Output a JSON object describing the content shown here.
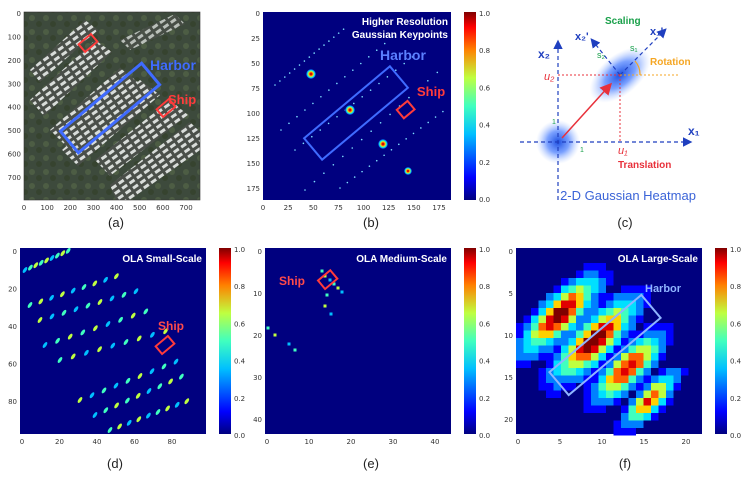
{
  "colors": {
    "bg_dark": "#00007f",
    "harbor": "#3f6bff",
    "ship": "#ff3b3b",
    "scaling": "#19a04a",
    "rotation": "#f5a623",
    "translation": "#e8313b",
    "axis": "#1f3fbf",
    "heatmap_title": "#3b64d8",
    "ola_harbor": "#8fb4ff"
  },
  "captions": {
    "a": "(a)",
    "b": "(b)",
    "c": "(c)",
    "d": "(d)",
    "e": "(e)",
    "f": "(f)"
  },
  "panel_a": {
    "harbor_label": "Harbor",
    "ship_label": "Ship",
    "x_ticks": [
      "0",
      "100",
      "200",
      "300",
      "400",
      "500",
      "600",
      "700"
    ],
    "y_ticks": [
      "0",
      "100",
      "200",
      "300",
      "400",
      "500",
      "600",
      "700"
    ]
  },
  "panel_b": {
    "title_line1": "Higher Resolution",
    "title_line2": "Gaussian Keypoints",
    "harbor_label": "Harbor",
    "ship_label": "Ship",
    "x_ticks": [
      "0",
      "25",
      "50",
      "75",
      "100",
      "125",
      "150",
      "175"
    ],
    "y_ticks": [
      "0",
      "25",
      "50",
      "75",
      "100",
      "125",
      "150",
      "175"
    ],
    "colorbar_ticks": [
      "1.0",
      "0.8",
      "0.6",
      "0.4",
      "0.2",
      "0.0"
    ]
  },
  "panel_c": {
    "scaling": "Scaling",
    "rotation": "Rotation",
    "translation": "Translation",
    "x1": "x₁",
    "x2": "x₂",
    "x1p": "x₁'",
    "x2p": "x₂'",
    "s1": "s₁",
    "s2": "s₂",
    "u1": "u₁",
    "u2": "u₂",
    "one_a": "1",
    "one_b": "1",
    "title": "2-D Gaussian Heatmap"
  },
  "panel_d": {
    "title": "OLA Small-Scale",
    "ship_label": "Ship",
    "x_ticks": [
      "0",
      "20",
      "40",
      "60",
      "80"
    ],
    "y_ticks": [
      "0",
      "20",
      "40",
      "60",
      "80"
    ],
    "colorbar_ticks": [
      "1.0",
      "0.8",
      "0.6",
      "0.4",
      "0.2",
      "0.0"
    ]
  },
  "panel_e": {
    "title": "OLA Medium-Scale",
    "ship_label": "Ship",
    "x_ticks": [
      "0",
      "10",
      "20",
      "30",
      "40"
    ],
    "y_ticks": [
      "0",
      "10",
      "20",
      "30",
      "40"
    ],
    "colorbar_ticks": [
      "1.0",
      "0.8",
      "0.6",
      "0.4",
      "0.2",
      "0.0"
    ]
  },
  "panel_f": {
    "title": "OLA Large-Scale",
    "harbor_label": "Harbor",
    "x_ticks": [
      "0",
      "5",
      "10",
      "15",
      "20"
    ],
    "y_ticks": [
      "0",
      "5",
      "10",
      "15",
      "20"
    ],
    "colorbar_ticks": [
      "1.0",
      "0.8",
      "0.6",
      "0.4",
      "0.2",
      "0.0"
    ]
  }
}
